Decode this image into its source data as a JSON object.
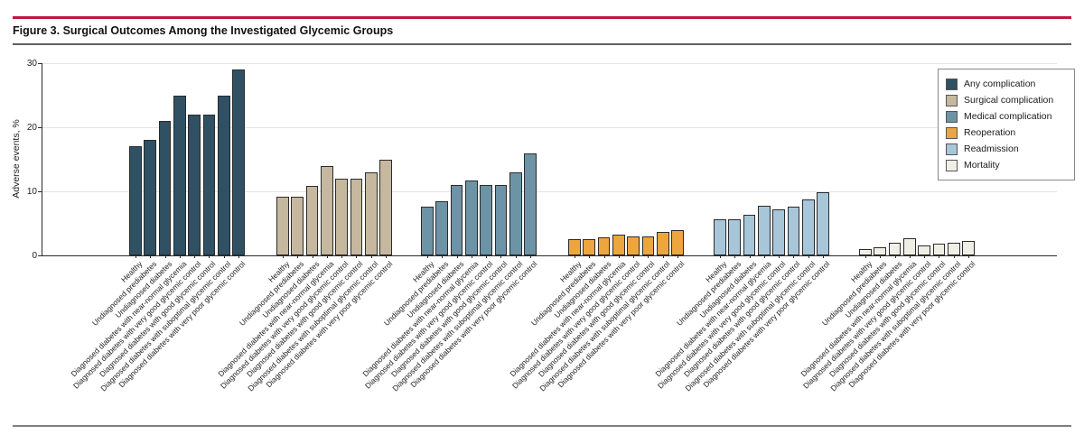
{
  "figure": {
    "title": "Figure 3. Surgical Outcomes Among the Investigated Glycemic Groups",
    "accent_color": "#c01640"
  },
  "chart_data": {
    "type": "bar",
    "title": "Figure 3. Surgical Outcomes Among the Investigated Glycemic Groups",
    "xlabel": "",
    "ylabel": "Adverse events, %",
    "ylim": [
      0,
      30
    ],
    "yticks": [
      0,
      10,
      20,
      30
    ],
    "grid": true,
    "legend_position": "top-right",
    "categories": [
      "Healthy",
      "Undiagnosed prediabetes",
      "Undiagnosed diabetes",
      "Diagnosed diabetes with near-normal glycemia",
      "Diagnosed diabetes with very good glycemic control",
      "Diagnosed diabetes with good glycemic control",
      "Diagnosed diabetes with suboptimal glycemic control",
      "Diagnosed diabetes with very poor glycemic control"
    ],
    "series": [
      {
        "name": "Any complication",
        "color": "#2f5163",
        "values": [
          17,
          18,
          21,
          25,
          22,
          22,
          25,
          29
        ]
      },
      {
        "name": "Surgical complication",
        "color": "#c6b89f",
        "values": [
          9.2,
          9.2,
          10.8,
          13.9,
          12,
          12,
          13,
          15
        ]
      },
      {
        "name": "Medical complication",
        "color": "#6d93a6",
        "values": [
          7.6,
          8.4,
          11,
          11.7,
          11,
          11,
          13,
          15.9
        ]
      },
      {
        "name": "Reoperation",
        "color": "#eda63e",
        "values": [
          2.5,
          2.5,
          2.8,
          3.3,
          3,
          3,
          3.6,
          3.9
        ]
      },
      {
        "name": "Readmission",
        "color": "#a8c6d9",
        "values": [
          5.7,
          5.7,
          6.4,
          7.8,
          7.2,
          7.6,
          8.7,
          9.8
        ]
      },
      {
        "name": "Mortality",
        "color": "#f0efe5",
        "values": [
          1,
          1.2,
          2,
          2.7,
          1.6,
          1.9,
          2,
          2.2
        ]
      }
    ]
  }
}
